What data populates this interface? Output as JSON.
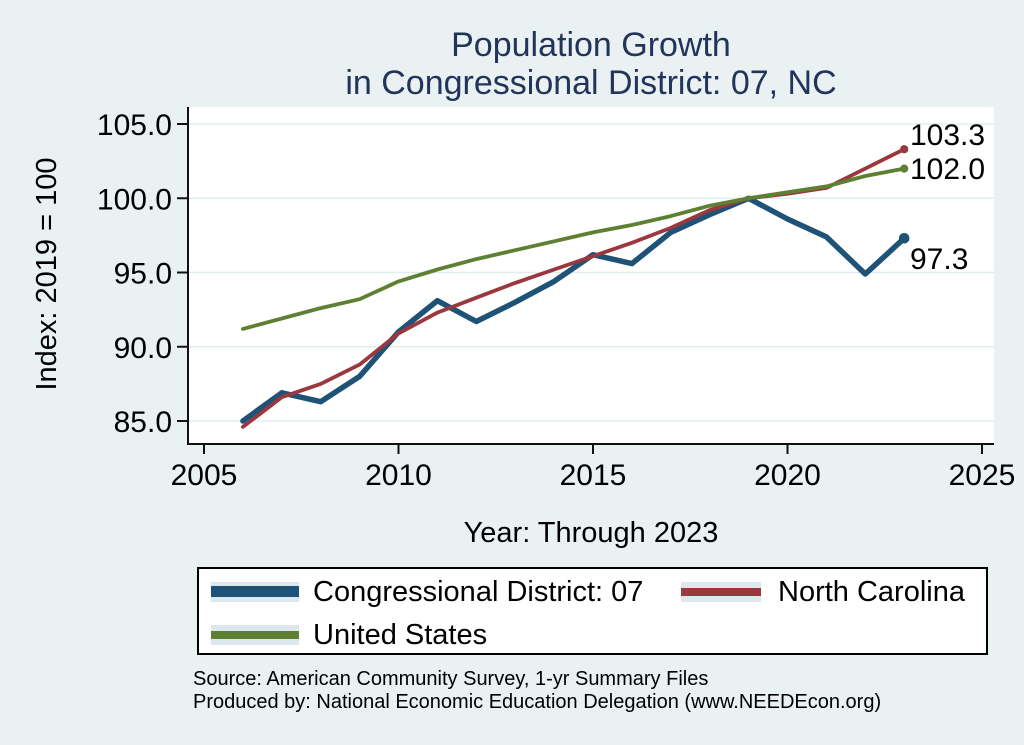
{
  "page": {
    "background": "#e9f1f3",
    "title_color": "#223459"
  },
  "title": {
    "line1": "Population Growth",
    "line2": "in Congressional District: 07, NC"
  },
  "chart_data": {
    "type": "line",
    "title": "Population Growth in Congressional District: 07, NC",
    "xlabel": "Year: Through 2023",
    "ylabel": "Index: 2019 = 100",
    "xlim": [
      2005,
      2025
    ],
    "ylim": [
      85,
      105
    ],
    "grid": true,
    "legend_position": "bottom",
    "x": [
      2006,
      2007,
      2008,
      2009,
      2010,
      2011,
      2012,
      2013,
      2014,
      2015,
      2016,
      2017,
      2018,
      2019,
      2020,
      2021,
      2022,
      2023
    ],
    "x_ticks": [
      {
        "value": 2005,
        "label": "2005"
      },
      {
        "value": 2010,
        "label": "2010"
      },
      {
        "value": 2015,
        "label": "2015"
      },
      {
        "value": 2020,
        "label": "2020"
      },
      {
        "value": 2025,
        "label": "2025"
      }
    ],
    "y_ticks": [
      {
        "value": 105,
        "label": "105.0"
      },
      {
        "value": 100,
        "label": "100.0"
      },
      {
        "value": 95,
        "label": "95.0"
      },
      {
        "value": 90,
        "label": "90.0"
      },
      {
        "value": 85,
        "label": "85.0"
      }
    ],
    "series": [
      {
        "id": "cd07",
        "name": "Congressional District: 07",
        "color": "#1e5377",
        "width": 5.5,
        "end_label": "97.3",
        "values": [
          85.0,
          86.9,
          86.3,
          88.0,
          91.0,
          93.1,
          91.7,
          93.0,
          94.4,
          96.2,
          95.6,
          97.7,
          98.9,
          100.0,
          98.6,
          97.4,
          94.9,
          97.3
        ]
      },
      {
        "id": "nc",
        "name": "North Carolina",
        "color": "#9a383e",
        "width": 3.8,
        "end_label": "103.3",
        "values": [
          84.6,
          86.6,
          87.5,
          88.8,
          90.9,
          92.3,
          93.3,
          94.3,
          95.2,
          96.1,
          97.0,
          98.0,
          99.2,
          100.0,
          100.3,
          100.7,
          102.0,
          103.3
        ]
      },
      {
        "id": "us",
        "name": "United States",
        "color": "#5e8033",
        "width": 3.8,
        "end_label": "102.0",
        "values": [
          91.2,
          91.9,
          92.6,
          93.2,
          94.4,
          95.2,
          95.9,
          96.5,
          97.1,
          97.7,
          98.2,
          98.8,
          99.5,
          100.0,
          100.4,
          100.8,
          101.5,
          102.0
        ]
      }
    ]
  },
  "source": {
    "line1": "Source: American Community Survey, 1-yr Summary Files",
    "line2": "Produced by: National Economic Education Delegation (www.NEEDEcon.org)"
  }
}
